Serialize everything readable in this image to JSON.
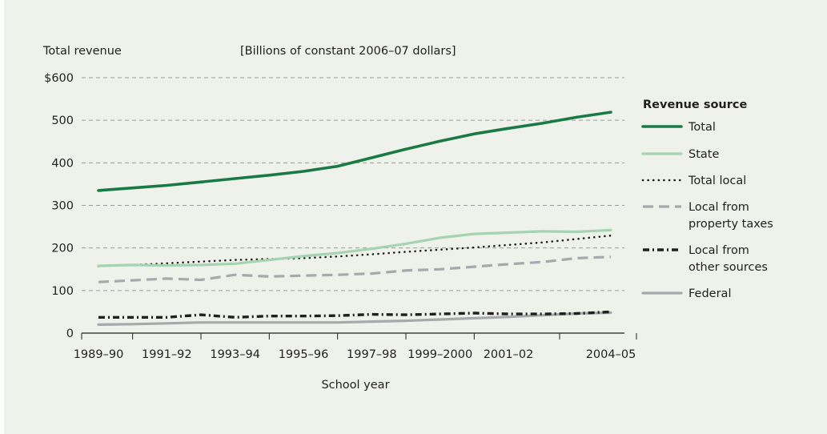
{
  "chart_data": {
    "type": "line",
    "ylabel": "Total revenue",
    "subtitle": "[Billions of constant 2006–07 dollars]",
    "xlabel": "School year",
    "y_ticks": [
      "$600",
      "500",
      "400",
      "300",
      "200",
      "100",
      "0"
    ],
    "ylim": [
      0,
      600
    ],
    "grid": true,
    "x": [
      "1989–90",
      "1990–91",
      "1991–92",
      "1992–93",
      "1993–94",
      "1994–95",
      "1995–96",
      "1996–97",
      "1997–98",
      "1998–99",
      "1999–2000",
      "2000–01",
      "2001–02",
      "2002–03",
      "2003–04",
      "2004–05"
    ],
    "x_tick_labels": [
      {
        "index": 0,
        "label": "1989–90"
      },
      {
        "index": 2,
        "label": "1991–92"
      },
      {
        "index": 4,
        "label": "1993–94"
      },
      {
        "index": 6,
        "label": "1995–96"
      },
      {
        "index": 8,
        "label": "1997–98"
      },
      {
        "index": 10,
        "label": "1999–2000"
      },
      {
        "index": 12,
        "label": "2001–02"
      },
      {
        "index": 15,
        "label": "2004–05"
      }
    ],
    "legend_title": "Revenue source",
    "legend_position": "right",
    "series": [
      {
        "name": "Total",
        "color": "#1a7a45",
        "style": "solid-thick",
        "values": [
          335,
          341,
          347,
          355,
          363,
          371,
          380,
          392,
          412,
          432,
          451,
          468,
          481,
          493,
          507,
          519
        ]
      },
      {
        "name": "State",
        "color": "#a6d4b2",
        "style": "solid",
        "values": [
          158,
          160,
          159,
          160,
          163,
          172,
          181,
          188,
          198,
          210,
          224,
          233,
          236,
          239,
          238,
          242
        ]
      },
      {
        "name": "Total local",
        "color": "#231f20",
        "style": "dotted",
        "values": [
          157,
          160,
          164,
          168,
          172,
          174,
          176,
          180,
          185,
          191,
          196,
          201,
          207,
          213,
          221,
          229
        ]
      },
      {
        "name": "Local from property taxes",
        "color": "#a7a9ac",
        "style": "dashed",
        "values": [
          120,
          124,
          128,
          125,
          137,
          133,
          135,
          137,
          140,
          147,
          150,
          156,
          162,
          167,
          176,
          179
        ]
      },
      {
        "name": "Local from other sources",
        "color": "#231f20",
        "style": "dash-dot",
        "values": [
          37,
          37,
          37,
          43,
          37,
          40,
          40,
          41,
          44,
          43,
          45,
          47,
          45,
          45,
          46,
          50
        ]
      },
      {
        "name": "Federal",
        "color": "#a7a9ac",
        "style": "solid",
        "values": [
          20,
          21,
          23,
          25,
          25,
          25,
          25,
          25,
          27,
          29,
          32,
          35,
          38,
          42,
          46,
          48
        ]
      }
    ]
  }
}
